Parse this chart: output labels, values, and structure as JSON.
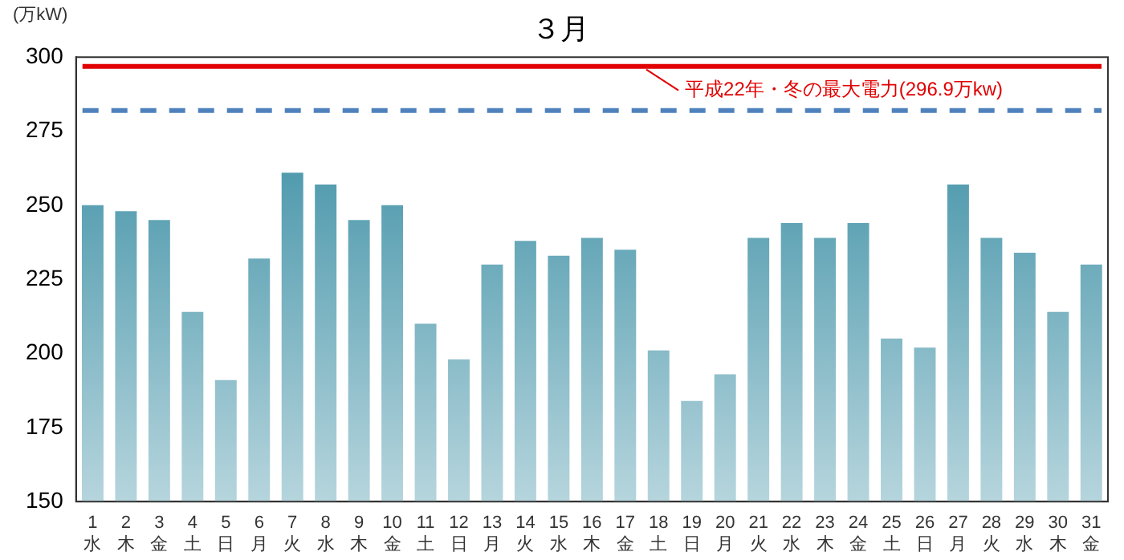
{
  "chart_data": {
    "type": "bar",
    "title": "３月",
    "ylabel": "(万kW)",
    "categories": [
      "1\n水",
      "2\n木",
      "3\n金",
      "4\n土",
      "5\n日",
      "6\n月",
      "7\n火",
      "8\n水",
      "9\n木",
      "10\n金",
      "11\n土",
      "12\n日",
      "13\n月",
      "14\n火",
      "15\n水",
      "16\n木",
      "17\n金",
      "18\n土",
      "19\n日",
      "20\n月",
      "21\n火",
      "22\n水",
      "23\n木",
      "24\n金",
      "25\n土",
      "26\n日",
      "27\n月",
      "28\n火",
      "29\n水",
      "30\n木",
      "31\n金"
    ],
    "values": [
      250,
      248,
      245,
      214,
      191,
      232,
      261,
      257,
      245,
      250,
      210,
      198,
      230,
      238,
      233,
      239,
      235,
      201,
      184,
      193,
      239,
      244,
      239,
      244,
      205,
      202,
      257,
      239,
      234,
      214,
      230
    ],
    "color": "#2e879e",
    "ylim": [
      150,
      300
    ],
    "yticks": [
      150,
      175,
      200,
      225,
      250,
      275,
      300
    ],
    "grid": false,
    "ref_lines": [
      {
        "axis": "y",
        "value": 296.9,
        "label": "平成22年・冬の最大電力(296.9万kw)",
        "color": "#e00000",
        "line_style": "solid"
      },
      {
        "axis": "y",
        "value": 282,
        "color": "#4f81bd",
        "line_style": "dashed"
      }
    ]
  }
}
